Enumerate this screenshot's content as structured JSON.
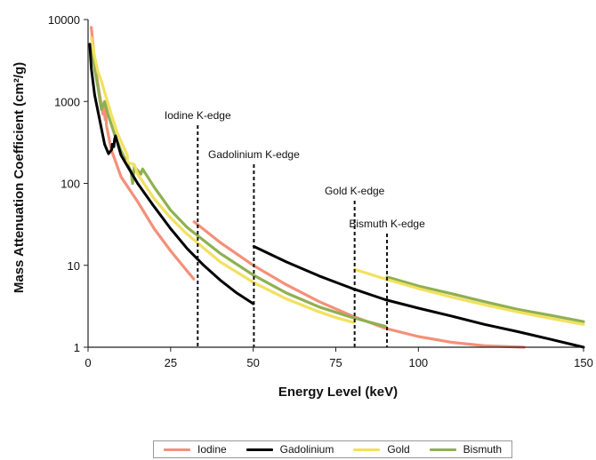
{
  "chart_data": {
    "type": "line",
    "xlabel": "Energy Level (keV)",
    "ylabel": "Mass Attenuation Coefficient (cm²/g)",
    "x_scale": "linear",
    "y_scale": "log",
    "xlim": [
      0,
      150
    ],
    "ylim": [
      1,
      10000
    ],
    "x_ticks": [
      "0",
      "25",
      "50",
      "75",
      "100",
      "150"
    ],
    "y_ticks": [
      "1",
      "10",
      "100",
      "1000",
      "10000"
    ],
    "grid": false,
    "legend_position": "bottom",
    "series": [
      {
        "name": "Iodine",
        "color": "#f4907a",
        "segments": [
          [
            [
              1,
              8000
            ],
            [
              2,
              3000
            ],
            [
              3,
              1600
            ],
            [
              4.5,
              700
            ],
            [
              4.6,
              900
            ],
            [
              5.2,
              600
            ],
            [
              5.3,
              800
            ],
            [
              5.6,
              500
            ],
            [
              7,
              260
            ],
            [
              10,
              120
            ],
            [
              15,
              60
            ],
            [
              20,
              28
            ],
            [
              25,
              15
            ],
            [
              30,
              8.5
            ],
            [
              32,
              6.8
            ]
          ],
          [
            [
              32.1,
              34
            ],
            [
              40,
              19
            ],
            [
              50,
              10
            ],
            [
              60,
              5.8
            ],
            [
              70,
              3.6
            ],
            [
              80,
              2.4
            ],
            [
              90,
              1.7
            ],
            [
              100,
              1.35
            ],
            [
              110,
              1.15
            ],
            [
              120,
              1.04
            ],
            [
              132,
              1.0
            ]
          ]
        ]
      },
      {
        "name": "Gadolinium",
        "color": "#000000",
        "segments": [
          [
            [
              0.5,
              5000
            ],
            [
              1,
              2500
            ],
            [
              2,
              1200
            ],
            [
              5,
              300
            ],
            [
              6.2,
              230
            ],
            [
              7.2,
              260
            ],
            [
              7.3,
              300
            ],
            [
              7.8,
              280
            ],
            [
              8,
              340
            ],
            [
              8.3,
              380
            ],
            [
              10,
              220
            ],
            [
              15,
              100
            ],
            [
              20,
              52
            ],
            [
              25,
              28
            ],
            [
              30,
              16
            ],
            [
              35,
              10
            ],
            [
              40,
              6.6
            ],
            [
              45,
              4.6
            ],
            [
              50,
              3.4
            ]
          ],
          [
            [
              50.2,
              17
            ],
            [
              60,
              11
            ],
            [
              70,
              7.4
            ],
            [
              80,
              5.2
            ],
            [
              90,
              3.8
            ],
            [
              100,
              3.0
            ],
            [
              110,
              2.4
            ],
            [
              120,
              1.9
            ],
            [
              130,
              1.55
            ],
            [
              140,
              1.25
            ],
            [
              150,
              1.0
            ]
          ]
        ]
      },
      {
        "name": "Gold",
        "color": "#f2e15e",
        "segments": [
          [
            [
              1,
              6000
            ],
            [
              2,
              3500
            ],
            [
              3,
              2300
            ],
            [
              4,
              1800
            ],
            [
              5,
              1300
            ],
            [
              7,
              700
            ],
            [
              9,
              400
            ],
            [
              11.9,
              220
            ],
            [
              11.9,
              180
            ],
            [
              14,
              170
            ],
            [
              15,
              130
            ],
            [
              20,
              65
            ],
            [
              25,
              38
            ],
            [
              30,
              24
            ],
            [
              40,
              11
            ],
            [
              50,
              6.2
            ],
            [
              60,
              3.9
            ],
            [
              70,
              2.7
            ],
            [
              75,
              2.3
            ],
            [
              80.5,
              2.0
            ]
          ],
          [
            [
              80.7,
              8.9
            ],
            [
              90,
              6.8
            ],
            [
              100,
              5.2
            ],
            [
              110,
              4.1
            ],
            [
              120,
              3.3
            ],
            [
              130,
              2.7
            ],
            [
              140,
              2.25
            ],
            [
              150,
              1.9
            ]
          ]
        ]
      },
      {
        "name": "Bismuth",
        "color": "#8fb050",
        "segments": [
          [
            [
              1,
              5000
            ],
            [
              2,
              2500
            ],
            [
              3,
              1500
            ],
            [
              4,
              800
            ],
            [
              5,
              1000
            ],
            [
              6,
              700
            ],
            [
              8,
              400
            ],
            [
              10,
              250
            ],
            [
              13,
              140
            ],
            [
              13.5,
              100
            ],
            [
              14,
              160
            ],
            [
              16,
              130
            ],
            [
              16.5,
              150
            ],
            [
              20,
              90
            ],
            [
              25,
              47
            ],
            [
              30,
              29
            ],
            [
              40,
              14
            ],
            [
              50,
              7.6
            ],
            [
              60,
              4.6
            ],
            [
              70,
              3.1
            ],
            [
              80,
              2.3
            ],
            [
              90,
              1.8
            ]
          ],
          [
            [
              90.5,
              7.2
            ],
            [
              100,
              5.6
            ],
            [
              110,
              4.5
            ],
            [
              120,
              3.6
            ],
            [
              130,
              2.9
            ],
            [
              140,
              2.45
            ],
            [
              150,
              2.05
            ]
          ]
        ]
      }
    ],
    "annotations": [
      {
        "label": "Iodine K-edge",
        "x": 33.2
      },
      {
        "label": "Gadolinium K-edge",
        "x": 50.2
      },
      {
        "label": "Gold K-edge",
        "x": 80.7
      },
      {
        "label": "Bismuth K-edge",
        "x": 90.5
      }
    ]
  }
}
